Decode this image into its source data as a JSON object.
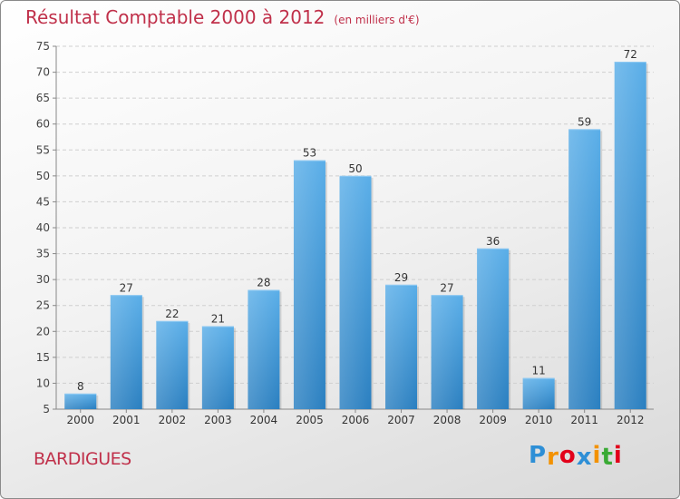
{
  "header": {
    "title": "Résultat Comptable 2000 à 2012",
    "unit": "(en milliers d'€)"
  },
  "commune": "BARDIGUES",
  "logo": {
    "letters": [
      "P",
      "r",
      "o",
      "x",
      "i",
      "t",
      "i"
    ],
    "colors": [
      "#2e8fd6",
      "#f39200",
      "#e2001a",
      "#2e8fd6",
      "#f39200",
      "#3aaa35",
      "#e2001a"
    ]
  },
  "colors": {
    "title": "#c0304a",
    "bar_light": "#5aaee8",
    "bar_dark": "#2a7fc0"
  },
  "chart_data": {
    "type": "bar",
    "title": "Résultat Comptable 2000 à 2012",
    "subtitle": "(en milliers d'€)",
    "xlabel": "",
    "ylabel": "",
    "categories": [
      "2000",
      "2001",
      "2002",
      "2003",
      "2004",
      "2005",
      "2006",
      "2007",
      "2008",
      "2009",
      "2010",
      "2011",
      "2012"
    ],
    "values": [
      8,
      27,
      22,
      21,
      28,
      53,
      50,
      29,
      27,
      36,
      11,
      59,
      72
    ],
    "ylim": [
      5,
      75
    ],
    "yticks": [
      5,
      10,
      15,
      20,
      25,
      30,
      35,
      40,
      45,
      50,
      55,
      60,
      65,
      70,
      75
    ],
    "grid": true,
    "data_labels": [
      "8",
      "27",
      "22",
      "21",
      "28",
      "53",
      "50",
      "29",
      "27",
      "36",
      "11",
      "59",
      "72"
    ]
  }
}
